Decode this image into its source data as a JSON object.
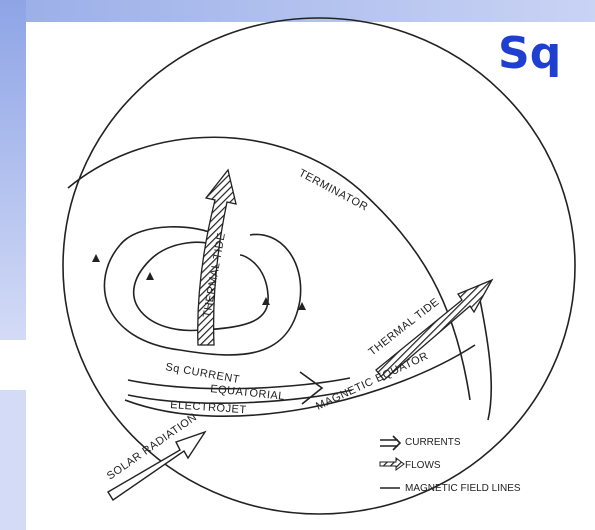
{
  "title": "Sq",
  "diagram": {
    "labels": [
      "TERMINATOR",
      "THERMAL TIDE",
      "THERMAL TIDE",
      "Sq CURRENT",
      "EQUATORIAL",
      "ELECTROJET",
      "MAGNETIC EQUATOR",
      "SOLAR RADIATION"
    ]
  },
  "legend": [
    "CURRENTS",
    "FLOWS",
    "MAGNETIC FIELD LINES"
  ]
}
